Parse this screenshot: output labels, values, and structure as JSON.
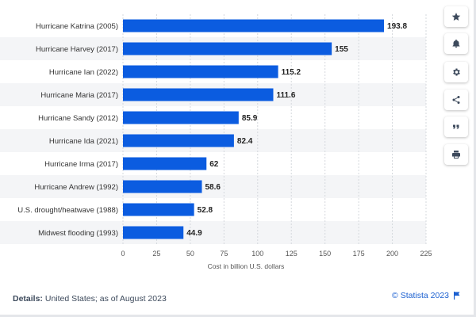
{
  "chart_data": {
    "type": "bar",
    "orientation": "horizontal",
    "categories": [
      "Hurricane Katrina (2005)",
      "Hurricane Harvey (2017)",
      "Hurricane Ian (2022)",
      "Hurricane Maria (2017)",
      "Hurricane Sandy (2012)",
      "Hurricane Ida (2021)",
      "Hurricane Irma (2017)",
      "Hurricane Andrew (1992)",
      "U.S. drought/heatwave (1988)",
      "Midwest flooding (1993)"
    ],
    "values": [
      193.8,
      155,
      115.2,
      111.6,
      85.9,
      82.4,
      62,
      58.6,
      52.8,
      44.9
    ],
    "value_labels": [
      "193.8",
      "155",
      "115.2",
      "111.6",
      "85.9",
      "82.4",
      "62",
      "58.6",
      "52.8",
      "44.9"
    ],
    "xlabel": "Cost in billion U.S. dollars",
    "ylabel": "",
    "xlim": [
      0,
      225
    ],
    "xticks": [
      0,
      25,
      50,
      75,
      100,
      125,
      150,
      175,
      200,
      225
    ],
    "xtick_labels": [
      "0",
      "25",
      "50",
      "75",
      "100",
      "125",
      "150",
      "175",
      "200",
      "225"
    ],
    "grid": true,
    "bar_color": "#0b5ce0",
    "stripe_color": "#f4f5f7"
  },
  "toolbar": {
    "buttons": [
      {
        "icon": "star-icon",
        "label": "favorite"
      },
      {
        "icon": "bell-icon",
        "label": "notification"
      },
      {
        "icon": "gear-icon",
        "label": "settings"
      },
      {
        "icon": "share-icon",
        "label": "share"
      },
      {
        "icon": "quote-icon",
        "label": "cite"
      },
      {
        "icon": "print-icon",
        "label": "print"
      }
    ]
  },
  "footer": {
    "details_label": "Details:",
    "details_text": " United States; as of August 2023",
    "credit": "© Statista 2023"
  },
  "colors": {
    "accent": "#1a5fd0",
    "bar": "#0b5ce0",
    "icon": "#3d4a5c"
  }
}
